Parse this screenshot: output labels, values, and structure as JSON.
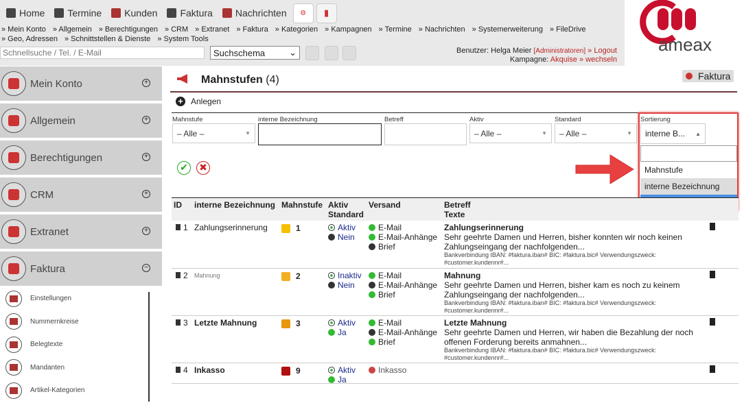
{
  "nav": {
    "items": [
      {
        "label": "Home",
        "icon": "home-icon"
      },
      {
        "label": "Termine",
        "icon": "calendar-icon"
      },
      {
        "label": "Kunden",
        "icon": "users-icon"
      },
      {
        "label": "Faktura",
        "icon": "document-icon"
      },
      {
        "label": "Nachrichten",
        "icon": "mail-icon"
      }
    ]
  },
  "links": {
    "items": [
      "» Mein Konto",
      "» Allgemein",
      "» Berechtigungen",
      "» CRM",
      "» Extranet",
      "» Faktura",
      "» Kategorien",
      "» Kampagnen",
      "» Termine",
      "» Nachrichten",
      "» Systemerweiterung",
      "» FileDrive",
      "» Geo, Adressen",
      "» Schnittstellen & Dienste",
      "» System Tools"
    ]
  },
  "search": {
    "placeholder": "Schnellsuche / Tel. / E-Mail",
    "schema": "Suchschema"
  },
  "user": {
    "label": "Benutzer: Helga Meier",
    "role": "[Administratoren]",
    "logout": "» Logout",
    "kampagne_label": "Kampagne:",
    "kampagne": "Akquise",
    "wechseln": "» wechseln"
  },
  "logo": {
    "text": "ameax"
  },
  "sidebar": {
    "items": [
      {
        "label": "Mein Konto",
        "toggle": "+"
      },
      {
        "label": "Allgemein",
        "toggle": "+"
      },
      {
        "label": "Berechtigungen",
        "toggle": "+"
      },
      {
        "label": "CRM",
        "toggle": "+"
      },
      {
        "label": "Extranet",
        "toggle": "+"
      },
      {
        "label": "Faktura",
        "toggle": "−"
      }
    ],
    "subitems": [
      "Einstellungen",
      "Nummernkreise",
      "Belegtexte",
      "Mandanten",
      "Artikel-Kategorien"
    ]
  },
  "page": {
    "title": "Mahnstufen",
    "count": "(4)",
    "back": "Faktura",
    "create": "Anlegen"
  },
  "filters": {
    "mahnstufe_label": "Mahnstufe",
    "mahnstufe": "– Alle –",
    "bez_label": "interne Bezeichnung",
    "betreff_label": "Betreff",
    "aktiv_label": "Aktiv",
    "aktiv": "– Alle –",
    "standard_label": "Standard",
    "standard": "– Alle –",
    "sort_label": "Sortierung",
    "sort": "interne B...",
    "sort_options": [
      "Mahnstufe",
      "interne Bezeichnung",
      "ID"
    ],
    "sort_highlighted": "ID"
  },
  "colors": {
    "accent": "#b22222",
    "highlight": "#4a90e2",
    "callout": "#e04040"
  },
  "table": {
    "headers": {
      "id": "ID",
      "bez": "interne Bezeichnung",
      "stufe": "Mahnstufe",
      "aktiv": "Aktiv",
      "standard": "Standard",
      "versand": "Versand",
      "betreff": "Betreff",
      "texte": "Texte"
    },
    "rows": [
      {
        "id": "1",
        "bez": "Zahlungserinnerung",
        "bez_style": "normal",
        "color": "#f5c000",
        "stufe": "1",
        "aktiv": "Aktiv",
        "standard": "Nein",
        "standard_ok": false,
        "versand": [
          [
            "E-Mail",
            true
          ],
          [
            "E-Mail-Anhänge",
            true
          ],
          [
            "Brief",
            false
          ]
        ],
        "betreff": "Zahlungserinnerung",
        "text": "Sehr geehrte Damen und Herren, bisher konnten wir noch keinen Zahlungseingang der nachfolgenden...",
        "bank": "Bankverbindung IBAN: #faktura.iban# BIC: #faktura.bic# Verwendungszweck: #customer.kundennr#..."
      },
      {
        "id": "2",
        "bez": "Mahnung",
        "bez_style": "small",
        "color": "#f0b020",
        "stufe": "2",
        "aktiv": "Inaktiv",
        "standard": "Nein",
        "standard_ok": false,
        "versand": [
          [
            "E-Mail",
            true
          ],
          [
            "E-Mail-Anhänge",
            false
          ],
          [
            "Brief",
            true
          ]
        ],
        "betreff": "Mahnung",
        "text": "Sehr geehrte Damen und Herren, bisher kam es noch zu keinem Zahlungseingang der nachfolgenden...",
        "bank": "Bankverbindung IBAN: #faktura.iban# BIC: #faktura.bic# Verwendungszweck: #customer.kundennr#..."
      },
      {
        "id": "3",
        "bez": "Letzte Mahnung",
        "bez_style": "bold",
        "color": "#e8960a",
        "stufe": "3",
        "aktiv": "Aktiv",
        "standard": "Ja",
        "standard_ok": true,
        "versand": [
          [
            "E-Mail",
            true
          ],
          [
            "E-Mail-Anhänge",
            false
          ],
          [
            "Brief",
            true
          ]
        ],
        "betreff": "Letzte Mahnung",
        "text": "Sehr geehrte Damen und Herren, wir haben die Bezahlung der noch offenen Forderung bereits anmahnen...",
        "bank": "Bankverbindung IBAN: #faktura.iban# BIC: #faktura.bic# Verwendungszweck: #customer.kundennr#..."
      },
      {
        "id": "4",
        "bez": "Inkasso",
        "bez_style": "bold",
        "color": "#b01010",
        "stufe": "9",
        "aktiv": "Aktiv",
        "standard": "Ja",
        "standard_ok": true,
        "versand": [
          [
            "Inkasso",
            "inkasso"
          ]
        ],
        "betreff": "",
        "text": "",
        "bank": ""
      }
    ]
  }
}
